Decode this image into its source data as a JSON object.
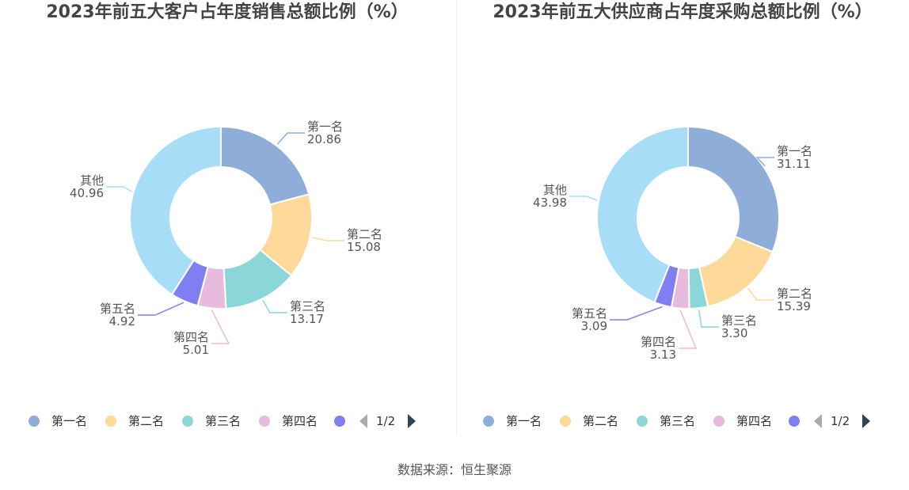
{
  "source_text": "数据来源：恒生聚源",
  "legend_page": "1/2",
  "chart_data": [
    {
      "type": "pie",
      "title": "2023年前五大客户占年度销售总额比例（%）",
      "unit": "%",
      "slices": [
        {
          "name": "第一名",
          "value": 20.86,
          "value_text": "20.86",
          "color": "#8fadd9"
        },
        {
          "name": "第二名",
          "value": 15.08,
          "value_text": "15.08",
          "color": "#fed99a"
        },
        {
          "name": "第三名",
          "value": 13.17,
          "value_text": "13.17",
          "color": "#8ad6d8"
        },
        {
          "name": "第四名",
          "value": 5.01,
          "value_text": "5.01",
          "color": "#e8bade"
        },
        {
          "name": "第五名",
          "value": 4.92,
          "value_text": "4.92",
          "color": "#7f7ff2"
        },
        {
          "name": "其他",
          "value": 40.96,
          "value_text": "40.96",
          "color": "#a8ddf8"
        }
      ],
      "legend": [
        "第一名",
        "第二名",
        "第三名",
        "第四名"
      ],
      "legend_position": "bottom"
    },
    {
      "type": "pie",
      "title": "2023年前五大供应商占年度采购总额比例（%）",
      "unit": "%",
      "slices": [
        {
          "name": "第一名",
          "value": 31.11,
          "value_text": "31.11",
          "color": "#8fadd9"
        },
        {
          "name": "第二名",
          "value": 15.39,
          "value_text": "15.39",
          "color": "#fed99a"
        },
        {
          "name": "第三名",
          "value": 3.3,
          "value_text": "3.30",
          "color": "#8ad6d8"
        },
        {
          "name": "第四名",
          "value": 3.13,
          "value_text": "3.13",
          "color": "#e8bade"
        },
        {
          "name": "第五名",
          "value": 3.09,
          "value_text": "3.09",
          "color": "#7f7ff2"
        },
        {
          "name": "其他",
          "value": 43.98,
          "value_text": "43.98",
          "color": "#a8ddf8"
        }
      ],
      "legend": [
        "第一名",
        "第二名",
        "第三名",
        "第四名"
      ],
      "legend_position": "bottom"
    }
  ]
}
